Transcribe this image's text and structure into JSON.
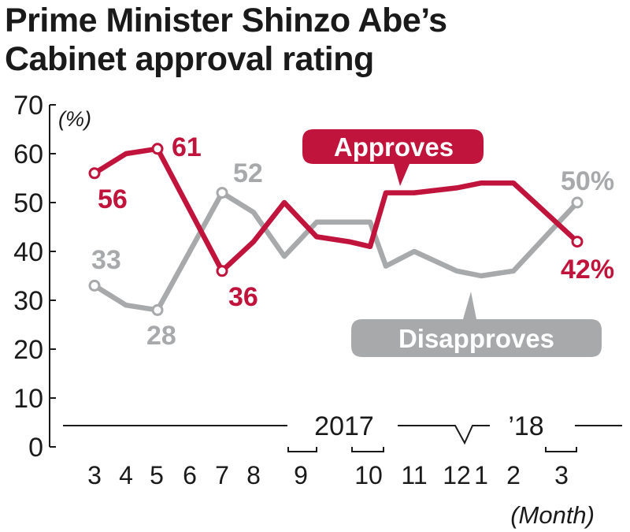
{
  "title_line1": "Prime Minister Shinzo Abe’s",
  "title_line2": "Cabinet approval rating",
  "colors": {
    "approve": "#c0143c",
    "disapprove": "#a7a9ab",
    "axis": "#1a1a1a"
  },
  "chart_data": {
    "type": "line",
    "title": "Prime Minister Shinzo Abe’s Cabinet approval rating",
    "ylabel": "(%)",
    "xlabel": "(Month)",
    "ylim": [
      0,
      70
    ],
    "yticks": [
      "0",
      "10",
      "20",
      "30",
      "40",
      "50",
      "60",
      "70"
    ],
    "x_tick_labels": [
      "3",
      "4",
      "5",
      "6",
      "7",
      "8",
      "9",
      "10",
      "11",
      "12",
      "1",
      "2",
      "3"
    ],
    "year_labels": [
      "2017",
      "’18"
    ],
    "grid": false,
    "series": [
      {
        "name": "Approves",
        "x": [
          3,
          4,
          5,
          7,
          8,
          8.5,
          9,
          9.5,
          10,
          10.5,
          11,
          12,
          1,
          2,
          3
        ],
        "values": [
          56,
          60,
          61,
          36,
          42,
          50,
          43,
          42,
          41,
          52,
          52,
          53,
          54,
          54,
          42
        ],
        "labels": [
          "56",
          "61",
          "36",
          "42%"
        ]
      },
      {
        "name": "Disapproves",
        "x": [
          3,
          4,
          5,
          7,
          8,
          8.5,
          9,
          9.5,
          10,
          10.5,
          11,
          12,
          1,
          2,
          3
        ],
        "values": [
          33,
          29,
          28,
          52,
          48,
          39,
          46,
          46,
          46,
          37,
          40,
          36,
          35,
          36,
          50
        ],
        "labels": [
          "33",
          "28",
          "52",
          "50%"
        ]
      }
    ]
  }
}
